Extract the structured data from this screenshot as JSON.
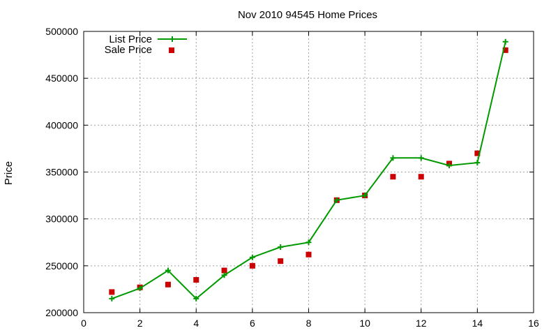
{
  "chart_data": {
    "type": "line",
    "title": "Nov 2010 94545 Home Prices",
    "xlabel": "",
    "ylabel": "Price",
    "xlim": [
      0,
      16
    ],
    "ylim": [
      200000,
      500000
    ],
    "x_ticks": [
      "0",
      "2",
      "4",
      "6",
      "8",
      "10",
      "12",
      "14",
      "16"
    ],
    "y_ticks": [
      "200000",
      "250000",
      "300000",
      "350000",
      "400000",
      "450000",
      "500000"
    ],
    "grid": true,
    "legend_position": "top-left",
    "series": [
      {
        "name": "List Price",
        "style": "lines-with-plus-markers",
        "color": "#009900",
        "x": [
          1,
          2,
          3,
          4,
          5,
          6,
          7,
          8,
          9,
          10,
          11,
          12,
          13,
          14,
          15
        ],
        "y": [
          215000,
          226000,
          245000,
          215000,
          240000,
          259000,
          270000,
          275000,
          320000,
          325000,
          365000,
          365000,
          357000,
          360000,
          489000
        ]
      },
      {
        "name": "Sale Price",
        "style": "square-markers",
        "color": "#cc0000",
        "x": [
          1,
          2,
          3,
          4,
          5,
          6,
          7,
          8,
          9,
          10,
          11,
          12,
          13,
          14,
          15
        ],
        "y": [
          222000,
          227000,
          230000,
          235000,
          245000,
          250000,
          255000,
          262000,
          320000,
          325000,
          345000,
          345000,
          359000,
          370000,
          480000
        ]
      }
    ]
  }
}
